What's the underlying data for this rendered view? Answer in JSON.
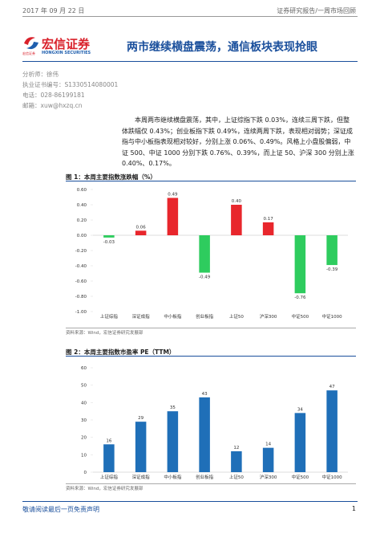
{
  "header": {
    "date": "2017 年 09 月 22 日",
    "category": "证券研究报告/一周市场回顾"
  },
  "logo": {
    "name": "宏信证券",
    "english": "HONGXIN SECURITIES",
    "short": "宏信证券"
  },
  "title": "两市继续横盘震荡，通信板块表现抢眼",
  "analyst": [
    "分析师：徐伟",
    "执业证书编号：S1330514080001",
    "电话：028-86199181",
    "邮箱：xuw@hxzq.cn"
  ],
  "summary": "本周两市继续横盘震荡，其中，上证综指下跌 0.03%，连续三周下跌，但整体跌幅仅 0.43%；创业板指下跌 0.49%，连续两周下跌，表现相对弱势；深证成指与中小板指表现相对较好，分别上涨 0.06%、0.49%。风格上小盘股偏弱，中证 500、中证 1000 分别下跌 0.76%、0.39%，而上证 50、沪深 300 分别上涨 0.40%、0.17%。",
  "figures": [
    {
      "title": "图 1：本周主要指数涨跌幅（%）",
      "chart_data": {
        "type": "bar",
        "categories": [
          "上证综指",
          "深证成指",
          "中小板指",
          "创业板指",
          "上证50",
          "沪深300",
          "中证500",
          "中证1000"
        ],
        "values": [
          -0.03,
          0.06,
          0.49,
          -0.49,
          0.4,
          0.17,
          -0.76,
          -0.39
        ],
        "value_labels": [
          "-0.03",
          "0.06",
          "0.49",
          "-0.49",
          "0.40",
          "0.17",
          "-0.76",
          "-0.39"
        ],
        "colors": [
          "#2ecc5e",
          "#e8262c",
          "#e8262c",
          "#2ecc5e",
          "#e8262c",
          "#e8262c",
          "#2ecc5e",
          "#2ecc5e"
        ],
        "ylim": [
          -1,
          0.6
        ],
        "yticks": [
          {
            "value": -1,
            "label": "-1.00"
          },
          {
            "value": -0.8,
            "label": "-0.80"
          },
          {
            "value": -0.6,
            "label": "-0.60"
          },
          {
            "value": -0.4,
            "label": "-0.40"
          },
          {
            "value": -0.2,
            "label": "-0.20"
          },
          {
            "value": 0,
            "label": "0.00"
          },
          {
            "value": 0.2,
            "label": "0.20"
          },
          {
            "value": 0.4,
            "label": "0.40"
          },
          {
            "value": 0.6,
            "label": "0.60"
          }
        ]
      },
      "source": "资料来源：Wind，宏信证券研究发展部"
    },
    {
      "title": "图 2：本周主要指数市盈率 PE（TTM）",
      "chart_data": {
        "type": "bar",
        "categories": [
          "上证综指",
          "深证成指",
          "中小板指",
          "创业板指",
          "上证50",
          "沪深300",
          "中证500",
          "中证1000"
        ],
        "values": [
          16,
          29,
          35,
          43,
          12,
          14,
          34,
          47
        ],
        "color": "#1f6fb8",
        "ylim": [
          0,
          60
        ],
        "yticks": [
          0,
          10,
          20,
          30,
          40,
          50,
          60
        ]
      },
      "source": "资料来源：Wind，宏信证券研究发展部"
    }
  ],
  "footer": {
    "note": "敬请阅读最后一页免责声明",
    "page": "1"
  }
}
